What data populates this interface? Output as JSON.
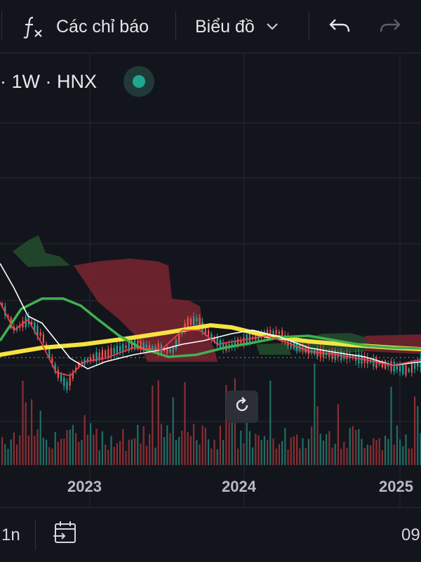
{
  "toolbar": {
    "indicators_label": "Các chỉ báo",
    "chart_type_label": "Biểu đồ",
    "icons": [
      "fx-icon",
      "chevron-down-icon",
      "undo-icon",
      "redo-icon"
    ]
  },
  "symbol": {
    "interval_exchange": "· 1W · HNX",
    "status_color": "#1fa88f"
  },
  "chart_data": {
    "type": "line",
    "x_ticks": [
      "2023",
      "2024",
      "2025"
    ],
    "series_colors": {
      "long_ma": "#f5e342",
      "mid_ma": "#3fb24f",
      "short_ma": "#ffffff",
      "fast_ma": "#e0424f",
      "up_candle": "#26a69a",
      "down_candle": "#ef5350",
      "cloud_bear": "#7a2430",
      "cloud_bull": "#244a2c"
    }
  },
  "bottombar": {
    "timeframe_label": "1n",
    "time_label": "09",
    "icons": [
      "goto-date-icon"
    ]
  }
}
